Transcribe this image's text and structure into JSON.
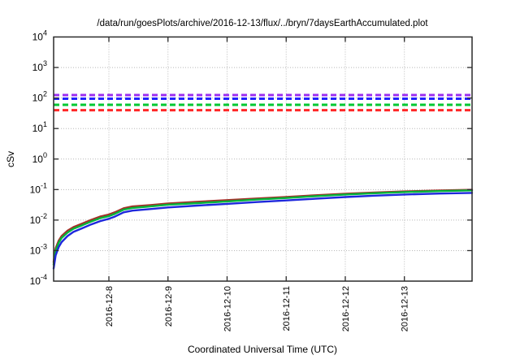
{
  "window": {
    "background": "#ffffff"
  },
  "chart_data": {
    "type": "line",
    "title": "/data/run/goesPlots/archive/2016-12-13/flux/../bryn/7daysEarthAccumulated.plot",
    "xlabel": "Coordinated Universal Time (UTC)",
    "ylabel": "cSv",
    "grid": true,
    "legend": "none",
    "y_axis": {
      "scale": "log10",
      "min_exp": -4,
      "max_exp": 4,
      "tick_exponents": [
        4,
        3,
        2,
        1,
        0,
        -1,
        -2,
        -3,
        -4
      ],
      "tick_base": "10"
    },
    "x_axis": {
      "unit": "days since 2016-12-07 00:00 UTC",
      "range_days": [
        0.065,
        7.145
      ],
      "ticks": [
        {
          "day": 1,
          "label": "2016-12-8"
        },
        {
          "day": 2,
          "label": "2016-12-9"
        },
        {
          "day": 3,
          "label": "2016-12-10"
        },
        {
          "day": 4,
          "label": "2016-12-11"
        },
        {
          "day": 5,
          "label": "2016-12-12"
        },
        {
          "day": 6,
          "label": "2016-12-13"
        }
      ]
    },
    "threshold_lines": [
      {
        "name": "purple-limit",
        "color": "#9b2ef0",
        "value_cSv": 125,
        "style": "dashed"
      },
      {
        "name": "blue-limit",
        "color": "#2222ff",
        "value_cSv": 95,
        "style": "dashed"
      },
      {
        "name": "green-limit",
        "color": "#00c832",
        "value_cSv": 60,
        "style": "dashed"
      },
      {
        "name": "red-limit",
        "color": "#ff2828",
        "value_cSv": 40,
        "style": "dashed"
      }
    ],
    "series": [
      {
        "name": "accumulated-dose-red",
        "color": "#a33028",
        "points": [
          [
            0.065,
            0.00042
          ],
          [
            0.1,
            0.0012
          ],
          [
            0.15,
            0.0021
          ],
          [
            0.2,
            0.003
          ],
          [
            0.3,
            0.0045
          ],
          [
            0.4,
            0.0059
          ],
          [
            0.55,
            0.0077
          ],
          [
            0.7,
            0.0102
          ],
          [
            0.85,
            0.013
          ],
          [
            1.0,
            0.0152
          ],
          [
            1.1,
            0.018
          ],
          [
            1.25,
            0.0245
          ],
          [
            1.4,
            0.028
          ],
          [
            1.7,
            0.031
          ],
          [
            2.0,
            0.035
          ],
          [
            2.5,
            0.04
          ],
          [
            3.0,
            0.045
          ],
          [
            3.5,
            0.051
          ],
          [
            4.0,
            0.057
          ],
          [
            4.5,
            0.065
          ],
          [
            5.0,
            0.073
          ],
          [
            5.5,
            0.08
          ],
          [
            6.0,
            0.087
          ],
          [
            6.6,
            0.093
          ],
          [
            7.145,
            0.098
          ]
        ]
      },
      {
        "name": "accumulated-dose-green",
        "color": "#00b43c",
        "points": [
          [
            0.065,
            0.00035
          ],
          [
            0.1,
            0.001
          ],
          [
            0.15,
            0.0018
          ],
          [
            0.2,
            0.0026
          ],
          [
            0.3,
            0.0039
          ],
          [
            0.4,
            0.0052
          ],
          [
            0.55,
            0.0068
          ],
          [
            0.7,
            0.009
          ],
          [
            0.85,
            0.0115
          ],
          [
            1.0,
            0.0135
          ],
          [
            1.1,
            0.016
          ],
          [
            1.25,
            0.022
          ],
          [
            1.4,
            0.025
          ],
          [
            1.7,
            0.028
          ],
          [
            2.0,
            0.032
          ],
          [
            2.5,
            0.036
          ],
          [
            3.0,
            0.041
          ],
          [
            3.5,
            0.047
          ],
          [
            4.0,
            0.053
          ],
          [
            4.5,
            0.061
          ],
          [
            5.0,
            0.069
          ],
          [
            5.5,
            0.076
          ],
          [
            6.0,
            0.083
          ],
          [
            6.6,
            0.089
          ],
          [
            7.145,
            0.094
          ]
        ]
      },
      {
        "name": "accumulated-dose-blue",
        "color": "#1e28dc",
        "points": [
          [
            0.065,
            0.00026
          ],
          [
            0.1,
            0.0007
          ],
          [
            0.15,
            0.0013
          ],
          [
            0.2,
            0.0019
          ],
          [
            0.3,
            0.003
          ],
          [
            0.4,
            0.0041
          ],
          [
            0.55,
            0.0054
          ],
          [
            0.7,
            0.0072
          ],
          [
            0.85,
            0.0092
          ],
          [
            1.0,
            0.011
          ],
          [
            1.1,
            0.013
          ],
          [
            1.25,
            0.018
          ],
          [
            1.4,
            0.0205
          ],
          [
            1.7,
            0.023
          ],
          [
            2.0,
            0.026
          ],
          [
            2.5,
            0.03
          ],
          [
            3.0,
            0.034
          ],
          [
            3.5,
            0.039
          ],
          [
            4.0,
            0.044
          ],
          [
            4.5,
            0.05
          ],
          [
            5.0,
            0.057
          ],
          [
            5.5,
            0.063
          ],
          [
            6.0,
            0.069
          ],
          [
            6.6,
            0.074
          ],
          [
            7.145,
            0.078
          ]
        ]
      }
    ],
    "colors": {
      "grid": "#b8b8b8",
      "border": "#2a2a2a",
      "text": "#000000"
    }
  }
}
